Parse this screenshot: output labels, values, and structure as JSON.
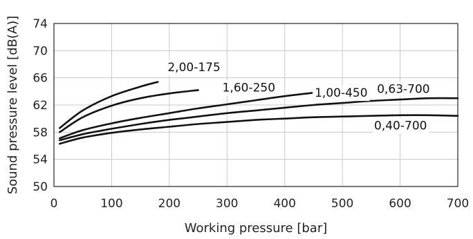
{
  "chart_data": {
    "type": "line",
    "title": "",
    "xlabel": "Working pressure [bar]",
    "ylabel": "Sound pressure level [dB(A)]",
    "xlim": [
      0,
      700
    ],
    "ylim": [
      50,
      74
    ],
    "x_ticks": [
      0,
      100,
      200,
      300,
      400,
      500,
      600,
      700
    ],
    "y_ticks": [
      50,
      54,
      58,
      62,
      66,
      70,
      74
    ],
    "grid": true,
    "series": [
      {
        "name": "2,00-175",
        "x": [
          10,
          50,
          100,
          150,
          180
        ],
        "y": [
          58.6,
          61.2,
          63.3,
          64.7,
          65.4
        ]
      },
      {
        "name": "1,60-250",
        "x": [
          10,
          50,
          100,
          150,
          200,
          250
        ],
        "y": [
          58.0,
          60.2,
          61.9,
          63.0,
          63.7,
          64.2
        ]
      },
      {
        "name": "1,00-450",
        "x": [
          10,
          50,
          100,
          150,
          200,
          250,
          300,
          350,
          400,
          450
        ],
        "y": [
          57.1,
          58.3,
          59.3,
          60.1,
          60.8,
          61.5,
          62.1,
          62.7,
          63.3,
          63.8
        ]
      },
      {
        "name": "0,63-700",
        "x": [
          10,
          50,
          100,
          150,
          200,
          250,
          300,
          350,
          400,
          450,
          500,
          550,
          600,
          650,
          700
        ],
        "y": [
          56.8,
          57.7,
          58.5,
          59.2,
          59.8,
          60.3,
          60.8,
          61.2,
          61.6,
          62.0,
          62.3,
          62.6,
          62.8,
          63.0,
          63.0
        ]
      },
      {
        "name": "0,40-700",
        "x": [
          10,
          50,
          100,
          150,
          200,
          250,
          300,
          350,
          400,
          450,
          500,
          550,
          600,
          650,
          700
        ],
        "y": [
          56.3,
          57.2,
          57.9,
          58.4,
          58.8,
          59.2,
          59.5,
          59.8,
          60.0,
          60.2,
          60.3,
          60.4,
          60.5,
          60.5,
          60.4
        ]
      }
    ]
  }
}
